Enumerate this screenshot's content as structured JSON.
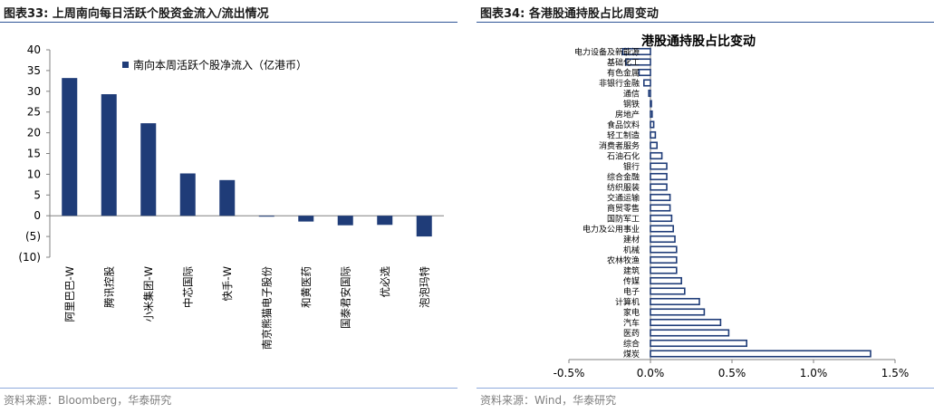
{
  "left": {
    "figure_title": "图表33:  上周南向每日活跃个股资金流入/流出情况",
    "source": "资料来源：Bloomberg，华泰研究"
  },
  "right": {
    "figure_title": "图表34:  各港股通持股占比周变动",
    "source": "资料来源：Wind，华泰研究"
  },
  "colors": {
    "bar": "#1f3c78",
    "rule": "#2f5597",
    "source": "#7f7f7f"
  },
  "chart_data": [
    {
      "type": "bar",
      "orientation": "vertical",
      "title": "",
      "xlabel": "",
      "ylabel": "",
      "legend": {
        "label": "南向本周活跃个股净流入（亿港币）",
        "placement": "top-right"
      },
      "categories": [
        "阿里巴巴-W",
        "腾讯控股",
        "小米集团-W",
        "中芯国际",
        "快手-W",
        "南京熊猫电子股份",
        "和黄医药",
        "国泰君安国际",
        "优必选",
        "泡泡玛特"
      ],
      "values": [
        33.2,
        29.3,
        22.3,
        10.2,
        8.6,
        -0.2,
        -1.4,
        -2.3,
        -2.2,
        -5.0
      ],
      "ylim": [
        -10,
        40
      ],
      "yticks": [
        -10,
        -5,
        0,
        5,
        10,
        15,
        20,
        25,
        30,
        35,
        40
      ],
      "ytick_labels": [
        "(10)",
        "(5)",
        "0",
        "5",
        "10",
        "15",
        "20",
        "25",
        "30",
        "35",
        "40"
      ],
      "grid": false
    },
    {
      "type": "bar",
      "orientation": "horizontal",
      "title": "港股通持股占比变动",
      "xlabel": "",
      "ylabel": "",
      "categories": [
        "电力设备及新能源",
        "基础化工",
        "有色金属",
        "非银行金融",
        "通信",
        "钢铁",
        "房地产",
        "食品饮料",
        "轻工制造",
        "消费者服务",
        "石油石化",
        "银行",
        "综合金融",
        "纺织服装",
        "交通运输",
        "商贸零售",
        "国防军工",
        "电力及公用事业",
        "建材",
        "机械",
        "农林牧渔",
        "建筑",
        "传媒",
        "电子",
        "计算机",
        "家电",
        "汽车",
        "医药",
        "综合",
        "煤炭"
      ],
      "values": [
        -0.17,
        -0.15,
        -0.07,
        -0.04,
        -0.01,
        0.0,
        0.01,
        0.02,
        0.03,
        0.04,
        0.07,
        0.1,
        0.1,
        0.1,
        0.12,
        0.12,
        0.13,
        0.14,
        0.15,
        0.16,
        0.16,
        0.16,
        0.19,
        0.21,
        0.3,
        0.33,
        0.43,
        0.48,
        0.59,
        1.35
      ],
      "xlim": [
        -0.5,
        1.5
      ],
      "xticks": [
        -0.5,
        0.0,
        0.5,
        1.0,
        1.5
      ],
      "xtick_labels": [
        "-0.5%",
        "0.0%",
        "0.5%",
        "1.0%",
        "1.5%"
      ],
      "grid": false
    }
  ]
}
